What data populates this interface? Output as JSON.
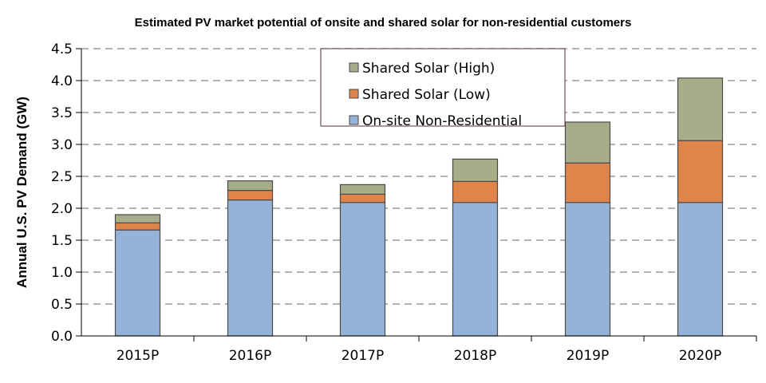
{
  "chart_data": {
    "type": "bar",
    "stacked": true,
    "title": "Estimated PV market potential of onsite and shared solar for non-residential customers",
    "xlabel": "",
    "ylabel": "Annual U.S. PV Demand (GW)",
    "ylim": [
      0,
      4.5
    ],
    "yticks": [
      "0.0",
      "0.5",
      "1.0",
      "1.5",
      "2.0",
      "2.5",
      "3.0",
      "3.5",
      "4.0",
      "4.5"
    ],
    "grid": true,
    "legend_position": "top-center",
    "categories": [
      "2015P",
      "2016P",
      "2017P",
      "2018P",
      "2019P",
      "2020P"
    ],
    "series": [
      {
        "name": "On-site Non-Residential",
        "color": "#95b3d7",
        "values": [
          1.66,
          2.13,
          2.09,
          2.09,
          2.09,
          2.09
        ]
      },
      {
        "name": "Shared Solar (Low)",
        "color": "#e0844a",
        "values": [
          0.11,
          0.15,
          0.13,
          0.33,
          0.62,
          0.97
        ]
      },
      {
        "name": "Shared Solar (High)",
        "color": "#a6ad89",
        "values": [
          0.13,
          0.15,
          0.15,
          0.35,
          0.64,
          0.98
        ]
      }
    ],
    "legend_order": [
      "Shared Solar (High)",
      "Shared Solar (Low)",
      "On-site Non-Residential"
    ]
  }
}
